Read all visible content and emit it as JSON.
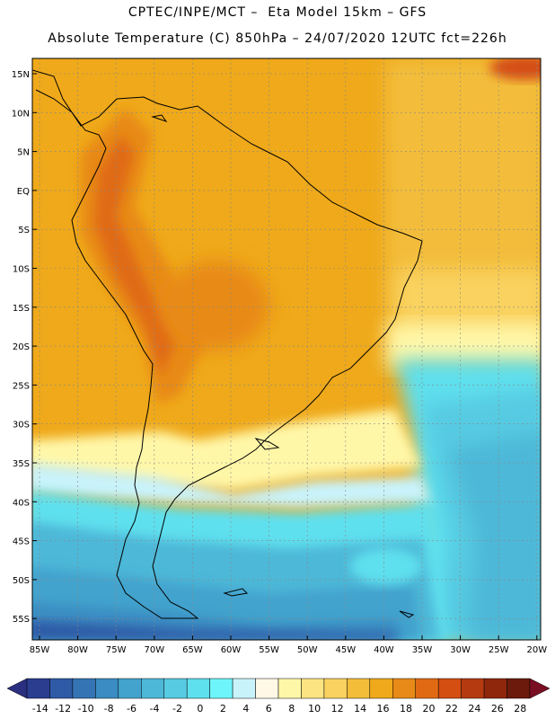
{
  "title_line1": "CPTEC/INPE/MCT –  Eta Model 15km – GFS",
  "title_line2": "Absolute Temperature (C) 850hPa – 24/07/2020 12UTC fct=226h",
  "latitude_labels": [
    "15N",
    "10N",
    "5N",
    "EQ",
    "5S",
    "10S",
    "15S",
    "20S",
    "25S",
    "30S",
    "35S",
    "40S",
    "45S",
    "50S",
    "55S"
  ],
  "longitude_labels": [
    "85W",
    "80W",
    "75W",
    "70W",
    "65W",
    "60W",
    "55W",
    "50W",
    "45W",
    "40W",
    "35W",
    "30W",
    "25W",
    "20W"
  ],
  "colorbar": {
    "tick_labels": [
      "-14",
      "-12",
      "-10",
      "-8",
      "-6",
      "-4",
      "-2",
      "0",
      "2",
      "4",
      "6",
      "8",
      "10",
      "12",
      "14",
      "16",
      "18",
      "20",
      "22",
      "24",
      "26",
      "28"
    ],
    "colors": [
      "#2a3d8f",
      "#2f5aa6",
      "#3474b4",
      "#3a8cc2",
      "#43a3cd",
      "#4db8d8",
      "#57cbe2",
      "#5fe0ee",
      "#6ef5fb",
      "#c9f3fb",
      "#fff8e6",
      "#fff7a8",
      "#fbe481",
      "#f9d25f",
      "#f3bd3a",
      "#efa91a",
      "#e88a18",
      "#e06a14",
      "#d44e12",
      "#b53a10",
      "#8f270d",
      "#6b1a0c"
    ],
    "underflow_color": "#2a2f7f",
    "overflow_color": "#7a0e23"
  }
}
